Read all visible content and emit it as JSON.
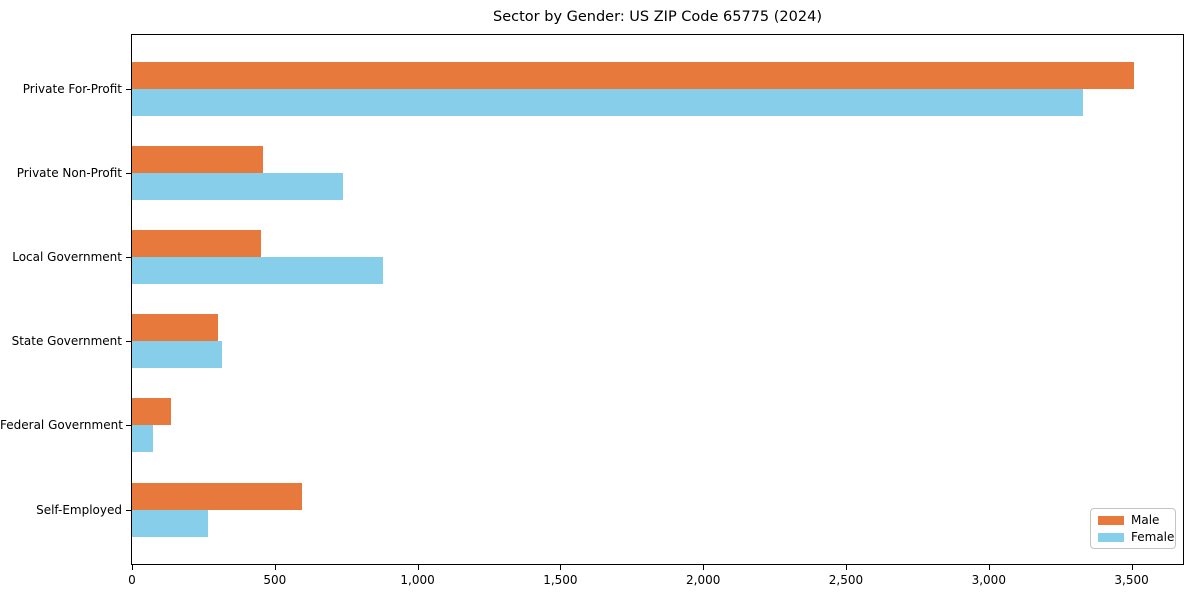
{
  "chart_data": {
    "type": "bar",
    "orientation": "horizontal",
    "title": "Sector by Gender: US ZIP Code 65775 (2024)",
    "categories": [
      "Private For-Profit",
      "Private Non-Profit",
      "Local Government",
      "State Government",
      "Federal Government",
      "Self-Employed"
    ],
    "series": [
      {
        "name": "Male",
        "color": "#E8793C",
        "values": [
          3510,
          460,
          450,
          300,
          135,
          595
        ]
      },
      {
        "name": "Female",
        "color": "#87CEEB",
        "values": [
          3330,
          740,
          880,
          315,
          75,
          265
        ]
      }
    ],
    "xlim": [
      0,
      3680
    ],
    "x_tick_values": [
      0,
      500,
      1000,
      1500,
      2000,
      2500,
      3000,
      3500
    ],
    "x_ticks": [
      "0",
      "500",
      "1,000",
      "1,500",
      "2,000",
      "2,500",
      "3,000",
      "3,500"
    ],
    "ylabel": "",
    "xlabel": "",
    "grid": false,
    "background_color": "#ffffff",
    "axis_color": "#000000",
    "legend": {
      "position": "lower right",
      "entries": [
        "Male",
        "Female"
      ]
    }
  }
}
